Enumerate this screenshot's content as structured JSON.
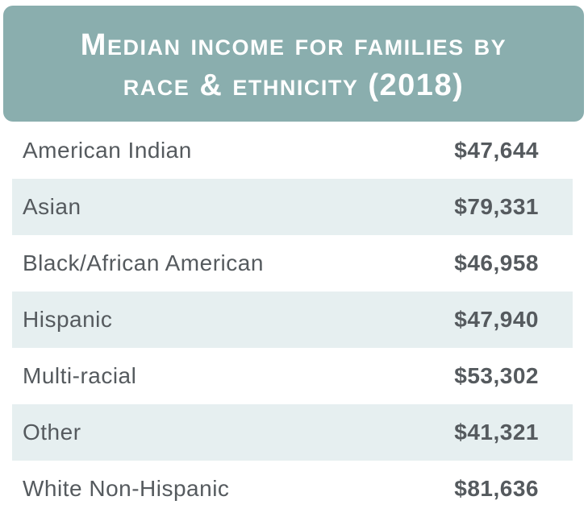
{
  "chart_data": {
    "type": "table",
    "title_lines": [
      "Median income for families by",
      "race & ethnicity (2018)"
    ],
    "categories": [
      "American Indian",
      "Asian",
      "Black/African American",
      "Hispanic",
      "Multi-racial",
      "Other",
      "White Non-Hispanic"
    ],
    "values": [
      47644,
      79331,
      46958,
      47940,
      53302,
      41321,
      81636
    ],
    "value_labels": [
      "$47,644",
      "$79,331",
      "$46,958",
      "$47,940",
      "$53,302",
      "$41,321",
      "$81,636"
    ]
  },
  "colors": {
    "header_bg": "#8aaeae",
    "header_text": "#ffffff",
    "row_shade": "#e6eff0",
    "text": "#555a5e"
  }
}
